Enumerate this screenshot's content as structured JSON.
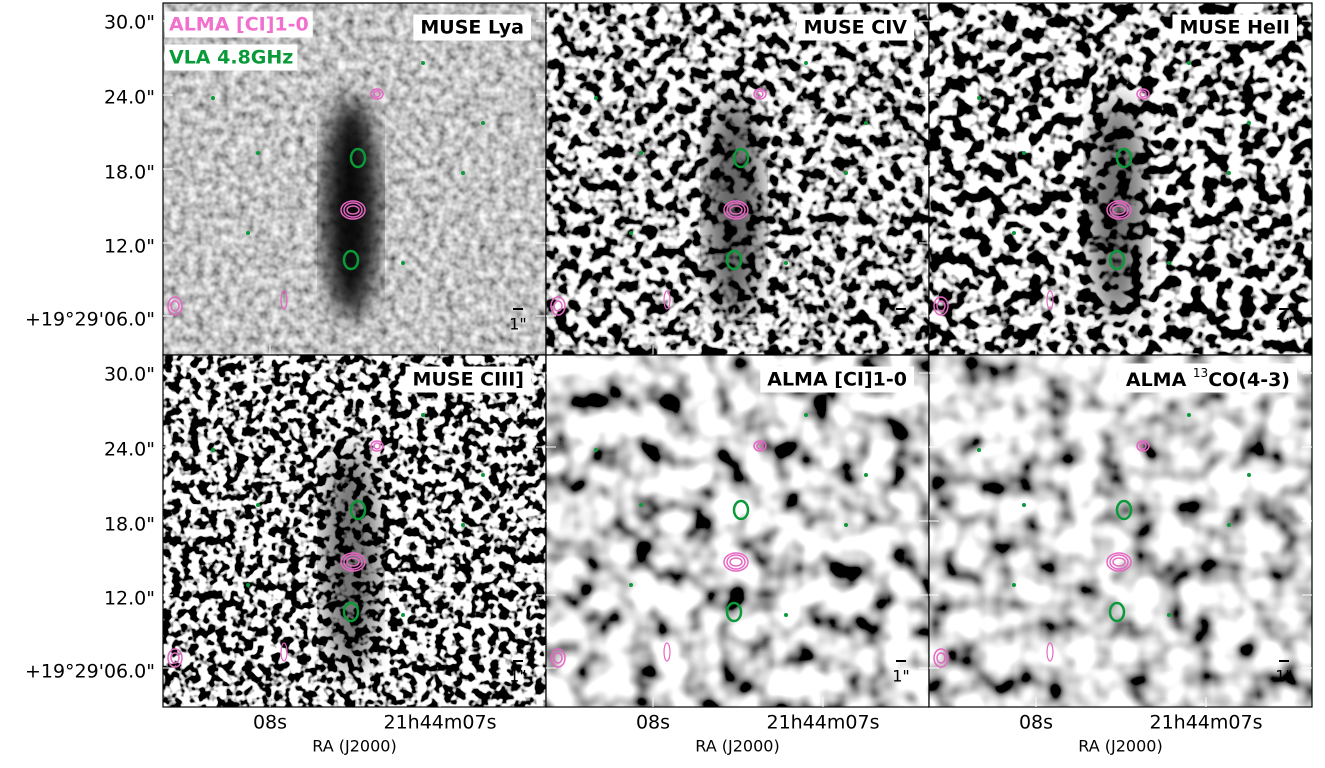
{
  "panels": [
    {
      "label": {
        "text": "MUSE Lya"
      }
    },
    {
      "label": {
        "text": "MUSE CIV"
      }
    },
    {
      "label": {
        "text": "MUSE HeII"
      }
    },
    {
      "label": {
        "text": "MUSE CIII]"
      }
    },
    {
      "label": {
        "text": "ALMA [CI]1-0"
      }
    },
    {
      "label": {
        "prefix": "ALMA ",
        "superscript": "13",
        "suffix": "CO(4-3)"
      }
    }
  ],
  "legend": [
    "ALMA [CI]1-0",
    "VLA 4.8GHz"
  ],
  "y_tick_labels": [
    "30.0\"",
    "24.0\"",
    "18.0\"",
    "12.0\"",
    "+19°29'06.0\""
  ],
  "x_tick_labels": [
    "08s",
    "21h44m07s"
  ],
  "x_axis_label": "RA (J2000)",
  "scale_bar_label": "1\""
}
